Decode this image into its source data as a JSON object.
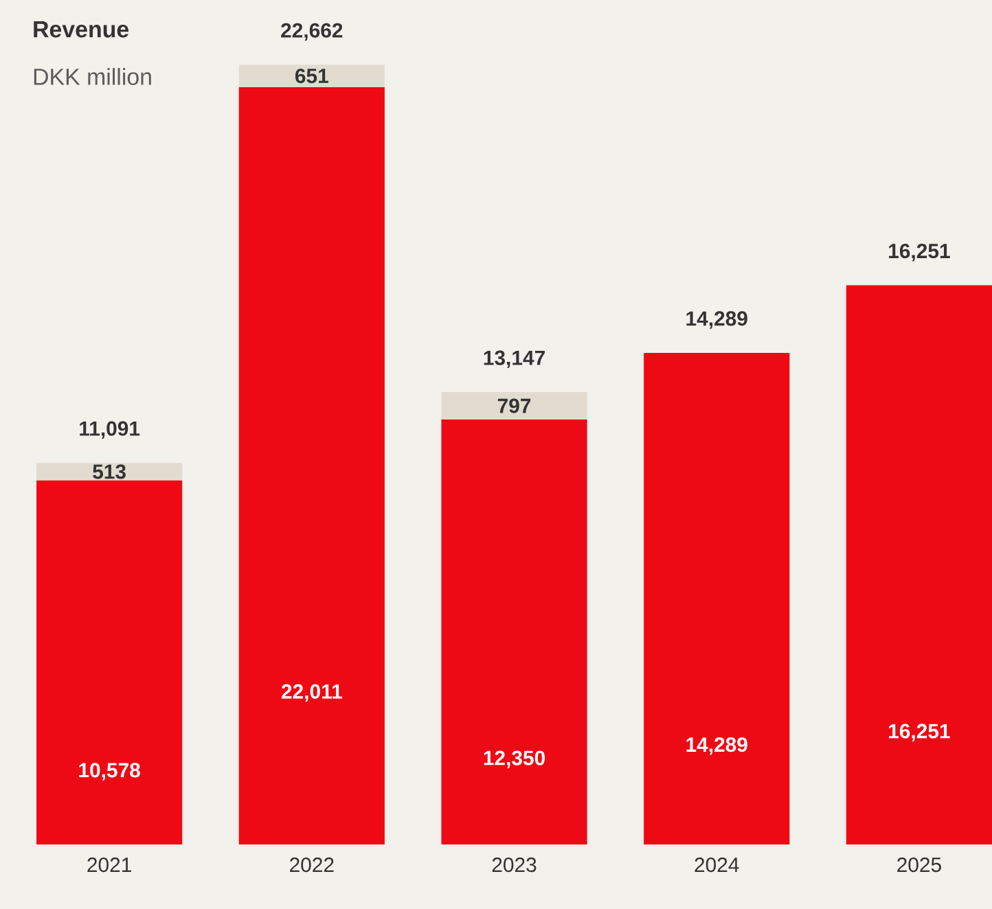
{
  "chart_data": {
    "type": "bar",
    "stacked": true,
    "title": "Revenue",
    "subtitle": "DKK million",
    "categories": [
      "2021",
      "2022",
      "2023",
      "2024",
      "2025"
    ],
    "series": [
      {
        "color": "#ee0a14",
        "values": [
          10578,
          22011,
          12350,
          14289,
          16251
        ],
        "value_labels": [
          "10,578",
          "22,011",
          "12,350",
          "14,289",
          "16,251"
        ]
      },
      {
        "color": "#e2dcd0",
        "values": [
          513,
          651,
          797,
          null,
          null
        ],
        "value_labels": [
          "513",
          "651",
          "797",
          null,
          null
        ]
      }
    ],
    "totals": [
      "11,091",
      "22,662",
      "13,147",
      "14,289",
      "16,251"
    ]
  }
}
